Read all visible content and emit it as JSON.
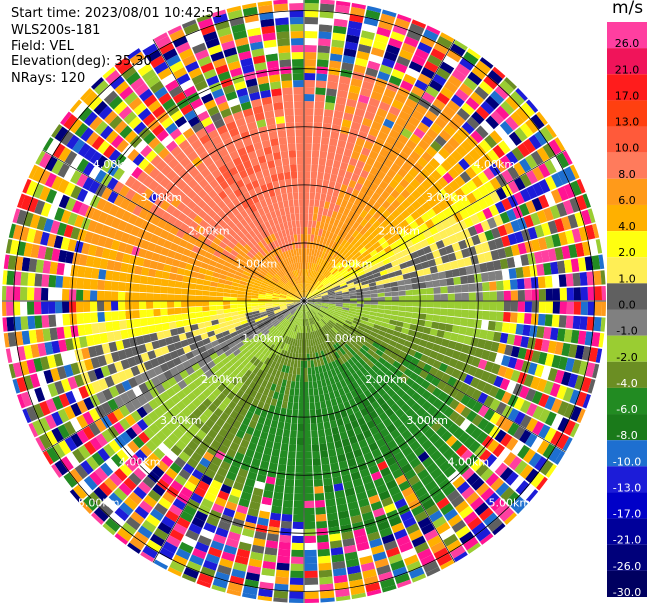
{
  "header": {
    "start_time": "Start time: 2023/08/01 10:42:51",
    "instrument": "WLS200s-181",
    "field": "Field: VEL",
    "elevation": "Elevation(deg): 35.30",
    "nrays": "NRays: 120"
  },
  "colorbar": {
    "unit": "m/s",
    "ticks": [
      "26.0",
      "21.0",
      "17.0",
      "13.0",
      "10.0",
      "8.0",
      "6.0",
      "4.0",
      "2.0",
      "1.0",
      "0.0",
      "-1.0",
      "-2.0",
      "-4.0",
      "-6.0",
      "-8.0",
      "-10.0",
      "-13.0",
      "-17.0",
      "-21.0",
      "-26.0",
      "-30.0"
    ],
    "colors": [
      "#ff3fa0",
      "#f0145a",
      "#ff1c1c",
      "#ff4010",
      "#ff5a3a",
      "#ff7b5c",
      "#ff9a1a",
      "#ffb000",
      "#ffff10",
      "#ffee55",
      "#606060",
      "#808080",
      "#9acd32",
      "#6b8e23",
      "#228b22",
      "#1a7a1a",
      "#1e6fd0",
      "#1c1cd8",
      "#0000c8",
      "#00009a",
      "#00007a",
      "#000060"
    ]
  },
  "chart_data": {
    "type": "heatmap",
    "subtype": "polar PPI",
    "field": "VEL",
    "units": "m/s",
    "nrays": 120,
    "max_range_km": 5.2,
    "range_ring_labels": [
      "1.00km",
      "2.00km",
      "3.00km",
      "4.00km",
      "5.00km"
    ],
    "value_range": [
      -30,
      26
    ],
    "pattern": "positive velocities (yellow to orange-red) in the north half, negative velocities (green to blue) in the south half, noise at far ranges"
  }
}
